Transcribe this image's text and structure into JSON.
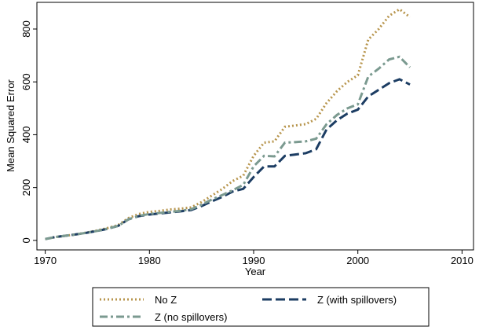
{
  "chart_data": {
    "type": "line",
    "x_label": "Year",
    "y_label": "Mean Squared Error",
    "x": [
      1970,
      1971,
      1972,
      1973,
      1974,
      1975,
      1976,
      1977,
      1978,
      1979,
      1980,
      1981,
      1982,
      1983,
      1984,
      1985,
      1986,
      1987,
      1988,
      1989,
      1990,
      1991,
      1992,
      1993,
      1994,
      1995,
      1996,
      1997,
      1998,
      1999,
      2000,
      2001,
      2002,
      2003,
      2004,
      2005
    ],
    "series": [
      {
        "name": "No Z",
        "color": "#b8964e",
        "line_style": "dotted",
        "values": [
          5,
          13,
          18,
          23,
          30,
          38,
          47,
          58,
          85,
          100,
          108,
          112,
          117,
          120,
          125,
          145,
          170,
          195,
          225,
          245,
          320,
          370,
          375,
          430,
          435,
          440,
          460,
          520,
          565,
          600,
          625,
          760,
          800,
          850,
          875,
          845
        ]
      },
      {
        "name": "Z (with spillovers)",
        "color": "#1c3d63",
        "line_style": "dashed",
        "values": [
          5,
          13,
          18,
          23,
          29,
          36,
          44,
          55,
          80,
          92,
          98,
          102,
          106,
          110,
          115,
          130,
          148,
          165,
          185,
          195,
          240,
          280,
          280,
          320,
          325,
          330,
          345,
          420,
          455,
          480,
          495,
          545,
          570,
          595,
          610,
          590
        ]
      },
      {
        "name": "Z (no spillovers)",
        "color": "#7b9a90",
        "line_style": "dashdot",
        "values": [
          5,
          13,
          18,
          23,
          29,
          36,
          45,
          55,
          80,
          93,
          100,
          104,
          108,
          112,
          118,
          135,
          155,
          172,
          190,
          210,
          280,
          320,
          318,
          370,
          372,
          375,
          385,
          440,
          475,
          500,
          515,
          620,
          650,
          685,
          695,
          655
        ]
      }
    ],
    "xlim": [
      1969.2,
      2011.1
    ],
    "xticks": [
      1970,
      1980,
      1990,
      2000,
      2010
    ],
    "ylim": [
      -36,
      901
    ],
    "yticks": [
      0,
      200,
      400,
      600,
      800
    ],
    "grid": false,
    "legend_position": "bottom"
  }
}
